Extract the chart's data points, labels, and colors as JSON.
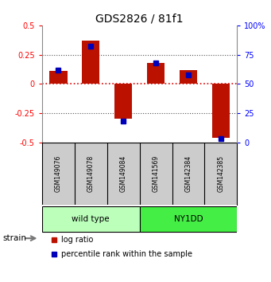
{
  "title": "GDS2826 / 81f1",
  "samples": [
    "GSM149076",
    "GSM149078",
    "GSM149084",
    "GSM141569",
    "GSM142384",
    "GSM142385"
  ],
  "log_ratios": [
    0.11,
    0.37,
    -0.3,
    0.18,
    0.12,
    -0.46
  ],
  "percentile_ranks": [
    62,
    82,
    18,
    68,
    58,
    3
  ],
  "groups": [
    {
      "label": "wild type",
      "indices": [
        0,
        1,
        2
      ],
      "color": "#bbffbb"
    },
    {
      "label": "NY1DD",
      "indices": [
        3,
        4,
        5
      ],
      "color": "#44ee44"
    }
  ],
  "ylim": [
    -0.5,
    0.5
  ],
  "yticks_left": [
    -0.5,
    -0.25,
    0,
    0.25,
    0.5
  ],
  "yticks_right": [
    0,
    25,
    50,
    75,
    100
  ],
  "bar_color": "#bb1100",
  "dot_color": "#0000bb",
  "hline_color_zero": "#dd0000",
  "hline_color_quarter": "#555555",
  "bg_color": "#ffffff",
  "bar_width": 0.55,
  "label_bg": "#cccccc",
  "strain_label": "strain",
  "legend_bar": "log ratio",
  "legend_dot": "percentile rank within the sample"
}
